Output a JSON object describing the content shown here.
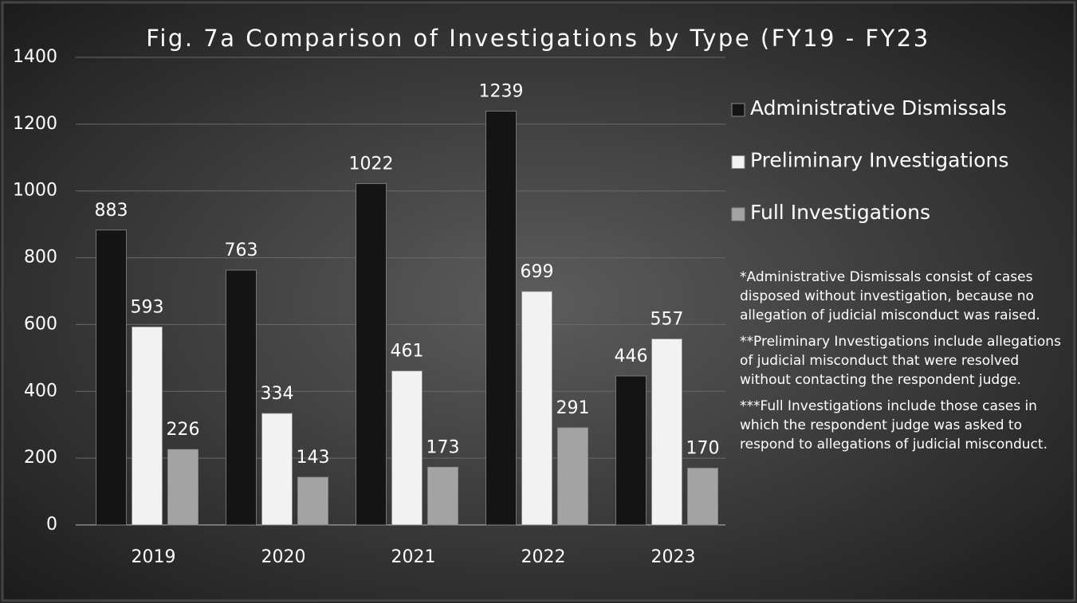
{
  "chart_data": {
    "type": "bar",
    "title": "Fig. 7a Comparison of Investigations by Type (FY19 - FY23",
    "categories": [
      "2019",
      "2020",
      "2021",
      "2022",
      "2023"
    ],
    "series": [
      {
        "name": "Administrative Dismissals",
        "color": "#141414",
        "values": [
          883,
          763,
          1022,
          1239,
          446
        ]
      },
      {
        "name": "Preliminary Investigations",
        "color": "#f2f2f2",
        "values": [
          593,
          334,
          461,
          699,
          557
        ]
      },
      {
        "name": "Full Investigations",
        "color": "#a3a3a3",
        "values": [
          226,
          143,
          173,
          291,
          170
        ]
      }
    ],
    "ylim": [
      0,
      1400
    ],
    "yticks": [
      0,
      200,
      400,
      600,
      800,
      1000,
      1200,
      1400
    ],
    "grid": true,
    "legend": "right",
    "notes": [
      "*Administrative Dismissals consist of cases disposed without investigation, because no allegation of judicial misconduct was raised.",
      "**Preliminary Investigations include allegations of judicial misconduct that were resolved without contacting the respondent judge.",
      "***Full Investigations include those cases in which the respondent judge was asked to respond to allegations of judicial misconduct."
    ]
  }
}
